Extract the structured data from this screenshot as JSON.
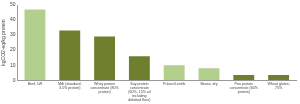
{
  "chart_data": {
    "type": "bar",
    "y_label": "kgCO2-eq/kg protein",
    "categories": [
      "Beef, LW",
      "Milk (standard, 3.5% protein)",
      "Whey protein concentrate (80% protein)",
      "Soy protein concentrate (60%, 15% oil including defatted flour)",
      "Pulses/Lentils",
      "Beans, dry",
      "Pea protein concentrate (60% protein)",
      "Wheat gluten, 75%"
    ],
    "values": [
      47,
      33,
      29,
      16,
      10,
      8,
      3.5,
      3.5
    ],
    "colors": [
      "#b3cf8c",
      "#6e7f2e",
      "#6e7f2e",
      "#6e7f2e",
      "#b3cf8c",
      "#b3cf8c",
      "#6e7f2e",
      "#6e7f2e"
    ],
    "ylim": [
      0,
      50
    ],
    "yticks": [
      0,
      10,
      20,
      30,
      40,
      50
    ],
    "grid": false
  }
}
